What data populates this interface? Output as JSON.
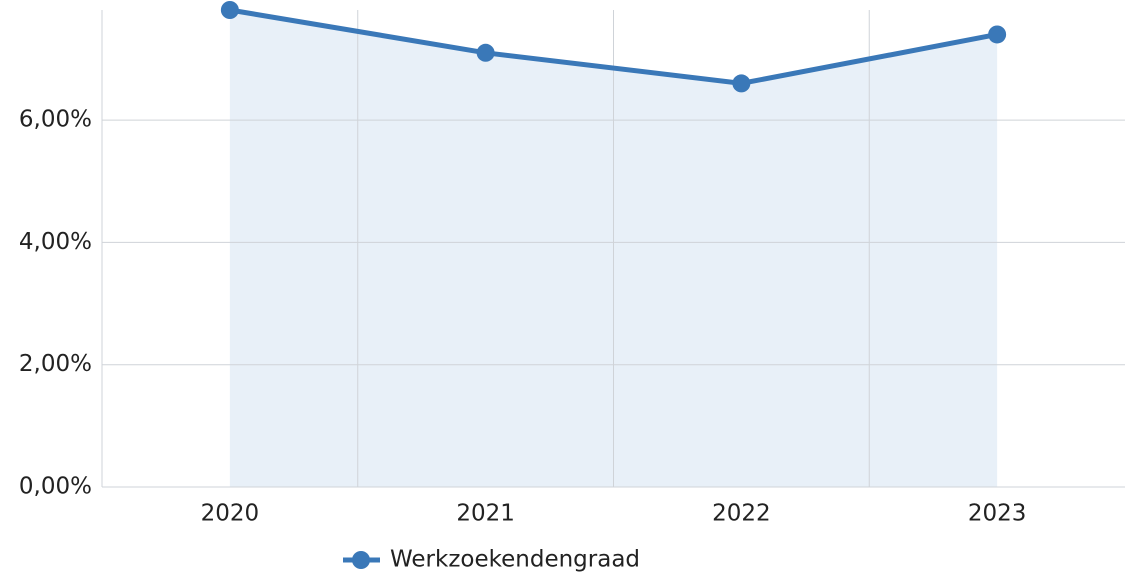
{
  "chart_data": {
    "type": "line",
    "categories": [
      "2020",
      "2021",
      "2022",
      "2023"
    ],
    "series": [
      {
        "name": "Werkzoekendengraad",
        "color": "#3a78b8",
        "values": [
          7.8,
          7.1,
          6.6,
          7.4
        ]
      }
    ],
    "ylim": [
      0,
      7.8
    ],
    "yticks": [
      {
        "value": 0,
        "label": "0,00%"
      },
      {
        "value": 2,
        "label": "2,00%"
      },
      {
        "value": 4,
        "label": "4,00%"
      },
      {
        "value": 6,
        "label": "6,00%"
      }
    ],
    "grid": true
  }
}
